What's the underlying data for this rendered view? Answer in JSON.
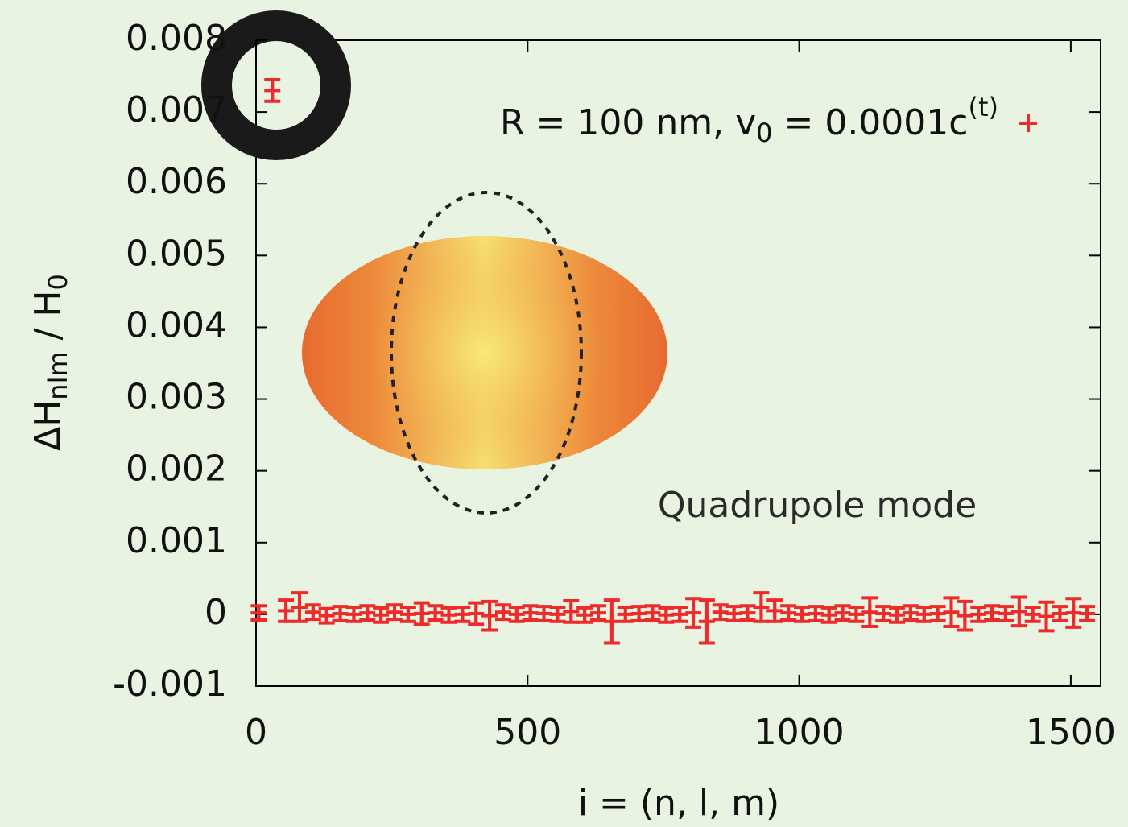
{
  "chart_data": {
    "type": "errorbar",
    "xlabel": "i = (n, l, m)",
    "ylabel": [
      "ΔH",
      "nlm",
      " / H",
      "0"
    ],
    "annotation": "Quadrupole mode",
    "xlim": [
      0,
      1555
    ],
    "xticks": [
      0,
      500,
      1000,
      1500
    ],
    "ylim": [
      -0.001,
      0.008
    ],
    "yticks": [
      -0.001,
      0,
      0.001,
      0.002,
      0.003,
      0.004,
      0.005,
      0.006,
      0.007,
      0.008
    ],
    "series": [
      {
        "name": [
          "R = 100 nm, v",
          "0",
          " = 0.0001c",
          "(t)"
        ],
        "color": "#ee2a2a",
        "x": [
          5,
          30,
          55,
          80,
          105,
          130,
          155,
          180,
          205,
          230,
          255,
          280,
          305,
          330,
          355,
          380,
          405,
          430,
          455,
          480,
          505,
          530,
          555,
          580,
          605,
          630,
          655,
          680,
          705,
          730,
          755,
          780,
          805,
          830,
          855,
          880,
          905,
          930,
          955,
          980,
          1005,
          1030,
          1055,
          1080,
          1105,
          1130,
          1155,
          1180,
          1205,
          1230,
          1255,
          1280,
          1305,
          1330,
          1355,
          1380,
          1405,
          1430,
          1455,
          1480,
          1505,
          1530
        ],
        "values": [
          2e-05,
          0.0073,
          5e-05,
          0.0001,
          3e-05,
          -2e-05,
          1e-05,
          0,
          2e-05,
          -1e-05,
          3e-05,
          0,
          1e-05,
          2e-05,
          -1e-05,
          0,
          1e-05,
          -2e-05,
          3e-05,
          0,
          2e-05,
          1e-05,
          0,
          4e-05,
          -1e-05,
          2e-05,
          -0.0001,
          0,
          1e-05,
          2e-05,
          -1e-05,
          0,
          2e-05,
          -0.0001,
          3e-05,
          1e-05,
          2e-05,
          0.0001,
          5e-05,
          2e-05,
          0,
          1e-05,
          -1e-05,
          2e-05,
          0,
          3e-05,
          1e-05,
          -1e-05,
          2e-05,
          0,
          1e-05,
          3e-05,
          -2e-05,
          0,
          2e-05,
          1e-05,
          4e-05,
          0,
          -3e-05,
          1e-05,
          2e-05,
          1e-05
        ],
        "errors": [
          0.0001,
          0.00015,
          0.00015,
          0.0002,
          0.0001,
          0.0001,
          0.0001,
          0.0001,
          0.0001,
          0.0001,
          0.0001,
          0.0001,
          0.00015,
          0.0001,
          0.0001,
          0.0001,
          0.00015,
          0.0002,
          0.0001,
          0.0001,
          0.0001,
          0.0001,
          0.0001,
          0.00015,
          0.0001,
          0.0001,
          0.0003,
          0.0001,
          0.0001,
          0.0001,
          0.0001,
          0.0001,
          0.0002,
          0.0003,
          0.0001,
          0.0001,
          0.0001,
          0.0002,
          0.00015,
          0.0001,
          0.0001,
          0.0001,
          0.0001,
          0.0001,
          0.0001,
          0.0002,
          0.0001,
          0.0001,
          0.0001,
          0.0001,
          0.0001,
          0.0002,
          0.0002,
          0.0001,
          0.0001,
          0.0001,
          0.0002,
          0.0001,
          0.0002,
          0.0001,
          0.0002,
          0.0001
        ]
      }
    ]
  }
}
